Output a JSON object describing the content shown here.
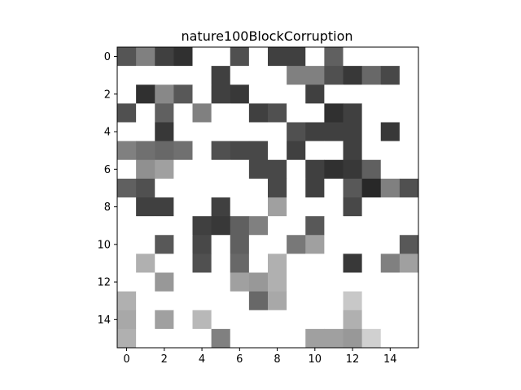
{
  "chart_data": {
    "type": "heatmap",
    "title": "nature100BlockCorruption",
    "xlabel": "",
    "ylabel": "",
    "colormap": "gray",
    "value_range": [
      0,
      255
    ],
    "blank_value": 255,
    "nrows": 16,
    "ncols": 16,
    "x_ticks": [
      0,
      2,
      4,
      6,
      8,
      10,
      12,
      14
    ],
    "y_ticks": [
      0,
      2,
      4,
      6,
      8,
      10,
      12,
      14
    ],
    "x_tick_labels": [
      "0",
      "2",
      "4",
      "6",
      "8",
      "10",
      "12",
      "14"
    ],
    "y_tick_labels": [
      "0",
      "2",
      "4",
      "6",
      "8",
      "10",
      "12",
      "14"
    ],
    "xlim": [
      -0.5,
      15.5
    ],
    "ylim": [
      15.5,
      -0.5
    ],
    "grid": false,
    "matrix": [
      [
        85,
        128,
        64,
        48,
        255,
        255,
        80,
        255,
        64,
        64,
        255,
        96,
        255,
        255,
        255,
        255
      ],
      [
        255,
        255,
        255,
        255,
        255,
        64,
        255,
        255,
        255,
        128,
        128,
        80,
        56,
        104,
        72,
        255
      ],
      [
        255,
        48,
        136,
        88,
        255,
        64,
        56,
        255,
        255,
        255,
        64,
        255,
        255,
        255,
        255,
        255
      ],
      [
        80,
        255,
        96,
        255,
        128,
        255,
        255,
        64,
        80,
        255,
        255,
        48,
        64,
        255,
        255,
        255
      ],
      [
        255,
        255,
        56,
        255,
        255,
        255,
        255,
        255,
        255,
        80,
        64,
        64,
        64,
        255,
        56,
        255
      ],
      [
        128,
        112,
        104,
        112,
        255,
        80,
        72,
        72,
        255,
        64,
        255,
        255,
        64,
        255,
        255,
        255
      ],
      [
        255,
        144,
        160,
        255,
        255,
        255,
        255,
        72,
        72,
        255,
        64,
        48,
        56,
        96,
        255,
        255
      ],
      [
        96,
        80,
        255,
        255,
        255,
        255,
        255,
        255,
        72,
        255,
        64,
        255,
        88,
        40,
        128,
        80
      ],
      [
        255,
        64,
        64,
        255,
        255,
        64,
        255,
        255,
        160,
        255,
        255,
        255,
        72,
        255,
        255,
        255
      ],
      [
        255,
        255,
        255,
        255,
        64,
        56,
        96,
        128,
        255,
        255,
        88,
        255,
        255,
        255,
        255,
        255
      ],
      [
        255,
        255,
        88,
        255,
        72,
        255,
        96,
        255,
        255,
        120,
        160,
        255,
        255,
        255,
        255,
        88
      ],
      [
        255,
        176,
        255,
        255,
        80,
        255,
        104,
        255,
        176,
        255,
        255,
        255,
        56,
        255,
        128,
        160
      ],
      [
        255,
        255,
        152,
        255,
        255,
        255,
        160,
        152,
        176,
        255,
        255,
        255,
        255,
        255,
        255,
        255
      ],
      [
        176,
        255,
        255,
        255,
        255,
        255,
        255,
        104,
        168,
        255,
        255,
        255,
        200,
        255,
        255,
        255
      ],
      [
        168,
        255,
        160,
        255,
        184,
        255,
        255,
        255,
        255,
        255,
        255,
        255,
        176,
        255,
        255,
        255
      ],
      [
        176,
        255,
        255,
        255,
        255,
        128,
        255,
        255,
        255,
        255,
        160,
        160,
        152,
        208,
        255,
        255
      ]
    ]
  }
}
